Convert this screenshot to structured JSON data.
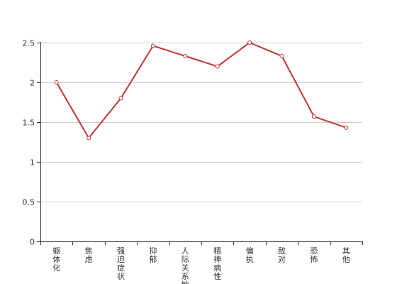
{
  "chart_data": {
    "type": "line",
    "title": "",
    "xlabel": "",
    "ylabel": "",
    "categories": [
      "躯体化",
      "焦虑",
      "强迫症状",
      "抑郁",
      "人际关系敏感",
      "精神病性",
      "偏执",
      "敌对",
      "恐怖",
      "其他"
    ],
    "series": [
      {
        "values": [
          2.0,
          1.3,
          1.8,
          2.46,
          2.33,
          2.2,
          2.5,
          2.33,
          1.57,
          1.43
        ]
      }
    ],
    "ylim": [
      0,
      2.5
    ],
    "yticks": [
      "0",
      "0.5",
      "1",
      "1.5",
      "2",
      "2.5"
    ],
    "grid": true,
    "legend": "none",
    "colors": {
      "line": "#c23531",
      "grid": "#cccccc",
      "axis": "#333333"
    }
  }
}
